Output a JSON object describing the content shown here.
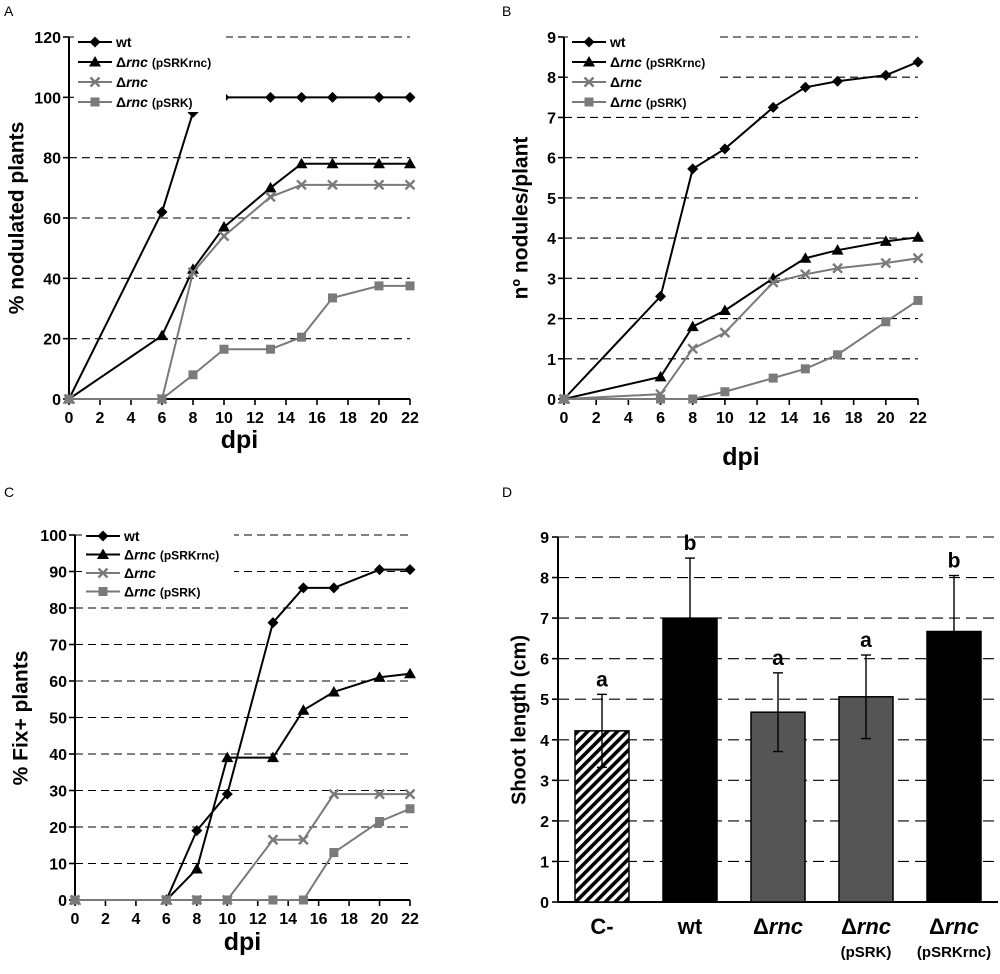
{
  "colors": {
    "wt": "#000000",
    "rnc_pSRKrnc": "#000000",
    "rnc": "#7a7a7a",
    "rnc_pSRK": "#7a7a7a",
    "bar_dark": "#000000",
    "bar_gray": "#555555",
    "axis": "#000000",
    "grid": "#000000"
  },
  "chart_data": [
    {
      "panel": "A",
      "type": "line",
      "title": "",
      "xlabel": "dpi",
      "ylabel": "% nodulated plants",
      "xlim": [
        0,
        22
      ],
      "ylim": [
        0,
        120
      ],
      "xticks": [
        0,
        2,
        4,
        6,
        8,
        10,
        12,
        14,
        16,
        18,
        20,
        22
      ],
      "yticks": [
        0,
        20,
        40,
        60,
        80,
        100,
        120
      ],
      "grid": "horizontal dashed",
      "legend_position": "top-left",
      "series": [
        {
          "key": "wt",
          "name": "wt",
          "prefix": "",
          "italic": "",
          "suffix": "",
          "marker": "diamond",
          "x": [
            0,
            6,
            8,
            10,
            13,
            15,
            17,
            20,
            22
          ],
          "y": [
            0,
            62,
            95,
            100,
            100,
            100,
            100,
            100,
            100
          ]
        },
        {
          "key": "rnc_pSRKrnc",
          "name": "Δrnc (pSRKrnc)",
          "prefix": "Δ",
          "italic": "rnc",
          "suffix": "(pSRKrnc)",
          "marker": "triangle",
          "x": [
            0,
            6,
            8,
            10,
            13,
            15,
            17,
            20,
            22
          ],
          "y": [
            0,
            21,
            43,
            57,
            70,
            78,
            78,
            78,
            78
          ]
        },
        {
          "key": "rnc",
          "name": "Δrnc",
          "prefix": "Δ",
          "italic": "rnc",
          "suffix": "",
          "marker": "x",
          "x": [
            0,
            6,
            8,
            10,
            13,
            15,
            17,
            20,
            22
          ],
          "y": [
            0,
            0,
            42,
            54,
            67,
            71,
            71,
            71,
            71
          ]
        },
        {
          "key": "rnc_pSRK",
          "name": "Δrnc (pSRK)",
          "prefix": "Δ",
          "italic": "rnc",
          "suffix": "(pSRK)",
          "marker": "square",
          "x": [
            0,
            6,
            8,
            10,
            13,
            15,
            17,
            20,
            22
          ],
          "y": [
            0,
            0,
            8,
            16.5,
            16.5,
            20.5,
            33.5,
            37.5,
            37.5
          ]
        }
      ]
    },
    {
      "panel": "B",
      "type": "line",
      "title": "",
      "xlabel": "dpi",
      "ylabel": "nº nodules/plant",
      "xlim": [
        0,
        22
      ],
      "ylim": [
        0,
        9
      ],
      "xticks": [
        0,
        2,
        4,
        6,
        8,
        10,
        12,
        14,
        16,
        18,
        20,
        22
      ],
      "yticks": [
        0,
        1,
        2,
        3,
        4,
        5,
        6,
        7,
        8,
        9
      ],
      "grid": "horizontal dashed",
      "legend_position": "top-left",
      "series": [
        {
          "key": "wt",
          "name": "wt",
          "prefix": "",
          "italic": "",
          "suffix": "",
          "marker": "diamond",
          "x": [
            0,
            6,
            8,
            10,
            13,
            15,
            17,
            20,
            22
          ],
          "y": [
            0,
            2.55,
            5.72,
            6.22,
            7.25,
            7.75,
            7.9,
            8.05,
            8.38
          ]
        },
        {
          "key": "rnc_pSRKrnc",
          "name": "Δrnc (pSRKrnc)",
          "prefix": "Δ",
          "italic": "rnc",
          "suffix": "(pSRKrnc)",
          "marker": "triangle",
          "x": [
            0,
            6,
            8,
            10,
            13,
            15,
            17,
            20,
            22
          ],
          "y": [
            0,
            0.55,
            1.8,
            2.2,
            3.0,
            3.5,
            3.7,
            3.92,
            4.02
          ]
        },
        {
          "key": "rnc",
          "name": "Δrnc",
          "prefix": "Δ",
          "italic": "rnc",
          "suffix": "",
          "marker": "x",
          "x": [
            0,
            6,
            8,
            10,
            13,
            15,
            17,
            20,
            22
          ],
          "y": [
            0,
            0.12,
            1.25,
            1.65,
            2.9,
            3.1,
            3.25,
            3.38,
            3.5
          ]
        },
        {
          "key": "rnc_pSRK",
          "name": "Δrnc (pSRK)",
          "prefix": "Δ",
          "italic": "rnc",
          "suffix": "(pSRK)",
          "marker": "square",
          "x": [
            0,
            6,
            8,
            10,
            13,
            15,
            17,
            20,
            22
          ],
          "y": [
            0,
            0,
            0,
            0.18,
            0.52,
            0.75,
            1.1,
            1.92,
            2.45
          ]
        }
      ]
    },
    {
      "panel": "C",
      "type": "line",
      "title": "",
      "xlabel": "dpi",
      "ylabel": "% Fix+ plants",
      "xlim": [
        0,
        22
      ],
      "ylim": [
        0,
        100
      ],
      "xticks": [
        0,
        2,
        4,
        6,
        8,
        10,
        12,
        14,
        16,
        18,
        20,
        22
      ],
      "yticks": [
        0,
        10,
        20,
        30,
        40,
        50,
        60,
        70,
        80,
        90,
        100
      ],
      "grid": "horizontal dashed",
      "legend_position": "top-left",
      "series": [
        {
          "key": "wt",
          "name": "wt",
          "prefix": "",
          "italic": "",
          "suffix": "",
          "marker": "diamond",
          "x": [
            0,
            6,
            8,
            10,
            13,
            15,
            17,
            20,
            22
          ],
          "y": [
            0,
            0,
            19,
            29,
            76,
            85.5,
            85.5,
            90.5,
            90.5
          ]
        },
        {
          "key": "rnc_pSRKrnc",
          "name": "Δrnc (pSRKrnc)",
          "prefix": "Δ",
          "italic": "rnc",
          "suffix": "(pSRKrnc)",
          "marker": "triangle",
          "x": [
            0,
            6,
            8,
            10,
            13,
            15,
            17,
            20,
            22
          ],
          "y": [
            0,
            0,
            8.5,
            39,
            39,
            52,
            57,
            61,
            62
          ]
        },
        {
          "key": "rnc",
          "name": "Δrnc",
          "prefix": "Δ",
          "italic": "rnc",
          "suffix": "",
          "marker": "x",
          "x": [
            0,
            6,
            8,
            10,
            13,
            15,
            17,
            20,
            22
          ],
          "y": [
            0,
            0,
            0,
            0,
            16.5,
            16.5,
            29,
            29,
            29
          ]
        },
        {
          "key": "rnc_pSRK",
          "name": "Δrnc (pSRK)",
          "prefix": "Δ",
          "italic": "rnc",
          "suffix": "(pSRK)",
          "marker": "square",
          "x": [
            0,
            6,
            8,
            10,
            13,
            15,
            17,
            20,
            22
          ],
          "y": [
            0,
            0,
            0,
            0,
            0,
            0,
            13,
            21.5,
            25
          ]
        }
      ]
    },
    {
      "panel": "D",
      "type": "bar",
      "title": "",
      "xlabel": "",
      "ylabel": "Shoot length (cm)",
      "ylim": [
        0,
        9
      ],
      "yticks": [
        0,
        1,
        2,
        3,
        4,
        5,
        6,
        7,
        8,
        9
      ],
      "grid": "horizontal dashed",
      "categories": [
        {
          "line1": "C-",
          "prefix": "",
          "italic": "",
          "line2": "",
          "fill": "hatch"
        },
        {
          "line1": "wt",
          "prefix": "",
          "italic": "",
          "line2": "",
          "fill": "dark"
        },
        {
          "line1": "",
          "prefix": "Δ",
          "italic": "rnc",
          "line2": "",
          "fill": "gray"
        },
        {
          "line1": "",
          "prefix": "Δ",
          "italic": "rnc",
          "line2": "(pSRK)",
          "fill": "gray"
        },
        {
          "line1": "",
          "prefix": "Δ",
          "italic": "rnc",
          "line2": "(pSRKrnc)",
          "fill": "dark"
        }
      ],
      "values": [
        4.22,
        7.0,
        4.68,
        5.06,
        6.67
      ],
      "errors": [
        0.9,
        1.48,
        0.97,
        1.03,
        1.38
      ],
      "significance": [
        "a",
        "b",
        "a",
        "a",
        "b"
      ]
    }
  ]
}
